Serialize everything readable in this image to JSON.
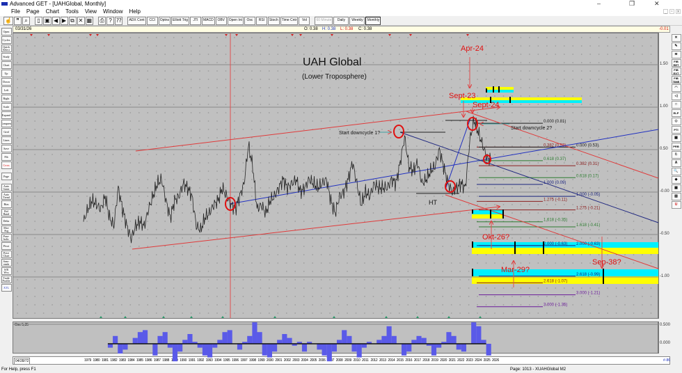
{
  "window": {
    "title": "Advanced GET - [UAHGlobal, Monthly]",
    "minimize": "–",
    "restore": "❐",
    "close": "✕"
  },
  "menu": [
    "File",
    "Page",
    "Chart",
    "Tools",
    "View",
    "Window",
    "Help"
  ],
  "toolbar": {
    "icon_buttons": [
      "hand-icon",
      "quote-icon",
      "zoom-icon",
      "new-icon",
      "save-icon",
      "back-icon",
      "forward-icon",
      "copy-icon",
      "delete-icon",
      "layout-icon",
      "print-icon",
      "help-icon",
      "context-help-icon"
    ],
    "study_buttons": [
      "ADX Cont",
      "CCI",
      "Optns",
      "Elliott Trig",
      "JTI",
      "MACD",
      "OBV",
      "Open Int",
      "Osc",
      "RSI",
      "Stoch",
      "Time Cntr",
      "Vol"
    ],
    "interval_buttons": [
      "60 Minute",
      "Daily",
      "Weekly",
      "Monthly"
    ],
    "active_interval": "Monthly"
  },
  "infobar": {
    "date": "03/31/26",
    "open": "O: 0.38",
    "high": "H: 0.38",
    "low": "L: 0.38",
    "close": "C: 0.38",
    "change": "-0.01"
  },
  "left_toolbar": [
    "Open",
    "Cycles",
    "Quick Select",
    "Study",
    "Chart",
    "Up",
    "Down",
    "Left",
    "Right",
    "Scale",
    "Expand",
    "Compress",
    "Grid",
    "Lines",
    "Save",
    "Fib",
    "Cross",
    "Page",
    "Auto Gann",
    "Auto Trend",
    "Bias",
    "Bol Band",
    "Delta",
    "Mov Avg",
    "Para-bolic",
    "Pivot",
    "Price Chart",
    "Seas-onals",
    "S/R Wvs",
    "Trade Profile",
    "XTL"
  ],
  "right_toolbar": [
    "✕",
    "✎",
    "≋",
    "FIB RET",
    "FIB EXT",
    "FIB TIME",
    "◠",
    "◁",
    "□",
    "ELP",
    "◇",
    "PTI",
    "▦",
    "PRB",
    "♘",
    "A",
    "🔍",
    "◆",
    "▦",
    "▥",
    "U"
  ],
  "y_axis": {
    "ticks": [
      "1.50",
      "1.00",
      "0.50",
      "-0.00",
      "-0.50",
      "-1.00"
    ],
    "tick_values": [
      1.5,
      1.0,
      0.5,
      0.0,
      -0.5,
      -1.0
    ]
  },
  "annotations": {
    "title": "UAH Global",
    "subtitle": "(Lower Troposphere)",
    "apr24": "Apr-24",
    "sept23": "Sept-23",
    "sept24": "Sept-24",
    "downcycle1": "Start downcycle 1?",
    "downcycle2": "Start downcycle 2?",
    "ht": "HT",
    "okt26": "Okt-26?",
    "mar29": "Mar-29?",
    "sep38": "Sep-38?"
  },
  "fib_a": [
    {
      "label": "0.000 (0.81)",
      "v": 0.81,
      "color": "#222222"
    },
    {
      "label": "0.382 (0.53)",
      "v": 0.53,
      "color": "#8b2020"
    },
    {
      "label": "0.618 (0.37)",
      "v": 0.37,
      "color": "#2e7d32"
    },
    {
      "label": "1.000 (0.09)",
      "v": 0.09,
      "color": "#1a237e"
    },
    {
      "label": "1.275 (-0.11)",
      "v": -0.11,
      "color": "#8b2020"
    },
    {
      "label": "1.618 (-0.35)",
      "v": -0.35,
      "color": "#2e7d32"
    },
    {
      "label": "2.000 (-0.63)",
      "v": -0.63,
      "color": "#1a237e"
    },
    {
      "label": "2.618 (-1.07)",
      "v": -1.07,
      "color": "#8b2020"
    },
    {
      "label": "3.000 (-1.35)",
      "v": -1.35,
      "color": "#6a1b9a"
    }
  ],
  "fib_b": [
    {
      "label": "0.000 (0.53)",
      "v": 0.53,
      "color": "#222222"
    },
    {
      "label": "0.382 (0.31)",
      "v": 0.31,
      "color": "#8b2020"
    },
    {
      "label": "0.618 (0.17)",
      "v": 0.17,
      "color": "#2e7d32"
    },
    {
      "label": "1.000 (-0.05)",
      "v": -0.05,
      "color": "#1a237e"
    },
    {
      "label": "1.275 (-0.21)",
      "v": -0.21,
      "color": "#8b2020"
    },
    {
      "label": "1.618 (-0.41)",
      "v": -0.41,
      "color": "#2e7d32"
    },
    {
      "label": "2.000 (-0.63)",
      "v": -0.63,
      "color": "#1a237e"
    },
    {
      "label": "2.618 (-0.99)",
      "v": -0.99,
      "color": "#1a237e"
    },
    {
      "label": "3.000 (-1.21)",
      "v": -1.21,
      "color": "#6a1b9a"
    }
  ],
  "price_series": {
    "start_year": 1979,
    "step_years": 0.5,
    "values": [
      -0.35,
      -0.2,
      -0.1,
      -0.15,
      -0.2,
      -0.05,
      -0.3,
      -0.4,
      0.05,
      -0.2,
      -0.4,
      -0.55,
      -0.4,
      -0.35,
      -0.4,
      -0.2,
      -0.05,
      0.1,
      0.15,
      -0.1,
      -0.3,
      -0.1,
      -0.05,
      0.1,
      0.05,
      -0.05,
      -0.4,
      -0.45,
      -0.3,
      -0.25,
      -0.15,
      -0.1,
      0.05,
      -0.05,
      -0.15,
      -0.2,
      -0.05,
      0.1,
      0.55,
      0.3,
      -0.2,
      -0.15,
      -0.25,
      -0.1,
      -0.05,
      0.05,
      0.15,
      0.05,
      0.1,
      0.15,
      0.0,
      0.05,
      0.15,
      0.1,
      0.05,
      0.1,
      0.15,
      -0.1,
      -0.25,
      -0.05,
      0.0,
      0.15,
      0.35,
      0.1,
      -0.15,
      0.0,
      -0.05,
      0.1,
      0.05,
      0.05,
      0.05,
      0.15,
      0.1,
      0.35,
      0.65,
      0.3,
      0.25,
      0.35,
      0.1,
      0.15,
      0.25,
      0.3,
      0.5,
      0.3,
      0.1,
      0.0,
      0.05,
      0.1,
      0.05,
      0.6,
      0.85,
      0.7,
      0.55,
      0.4,
      0.38
    ]
  },
  "oscillator": {
    "label": "Osc 5,35",
    "ticks": [
      "0.500",
      "0.000"
    ],
    "start_year": 1981.8,
    "end_year": 2025.4,
    "values": [
      -0.1,
      0.2,
      -0.25,
      -0.15,
      0.0,
      0.15,
      0.3,
      0.35,
      0.0,
      -0.3,
      0.2,
      0.3,
      -0.1,
      -0.45,
      -0.2,
      0.1,
      0.25,
      0.05,
      -0.1,
      -0.3,
      -0.35,
      -0.1,
      0.1,
      0.3,
      0.35,
      0.0,
      -0.15,
      0.05,
      0.2,
      0.55,
      0.3,
      -0.3,
      -0.35,
      -0.2,
      0.1,
      0.25,
      0.15,
      -0.05,
      0.05,
      -0.2,
      0.05,
      0.0,
      -0.15,
      -0.3,
      -0.45,
      -0.2,
      0.1,
      0.35,
      0.2,
      -0.2,
      -0.35,
      -0.1,
      0.05,
      0.0,
      0.1,
      0.2,
      0.45,
      0.2,
      0.0,
      -0.3,
      -0.2,
      0.1,
      0.2,
      0.15,
      -0.05,
      -0.3,
      -0.1,
      0.05,
      0.3,
      0.2,
      -0.15,
      -0.2,
      0.0,
      0.55,
      0.45,
      0.1,
      -0.3
    ]
  },
  "date_axis": {
    "start_label": "04/28/72",
    "end_label": "#-86",
    "years": [
      "1979",
      "1980",
      "1981",
      "1982",
      "1983",
      "1984",
      "1985",
      "1986",
      "1987",
      "1988",
      "1989",
      "1990",
      "1991",
      "1992",
      "1993",
      "1994",
      "1995",
      "1996",
      "1997",
      "1998",
      "1999",
      "2000",
      "2001",
      "2002",
      "2003",
      "2004",
      "2005",
      "2006",
      "2007",
      "2008",
      "2009",
      "2010",
      "2011",
      "2012",
      "2013",
      "2014",
      "2015",
      "2016",
      "2017",
      "2018",
      "2019",
      "2020",
      "2021",
      "2022",
      "2023",
      "2024",
      "2025",
      "2026"
    ]
  },
  "status": {
    "help": "For Help, press F1",
    "page": "Page: 1013 - XUAHGlobal M2"
  },
  "colors": {
    "price": "#222222",
    "channel": "#e03a3a",
    "trend": "#2030c0",
    "osc": "#5a5ae8",
    "cyan": "#00f0ff",
    "yellow": "#ffff00"
  }
}
